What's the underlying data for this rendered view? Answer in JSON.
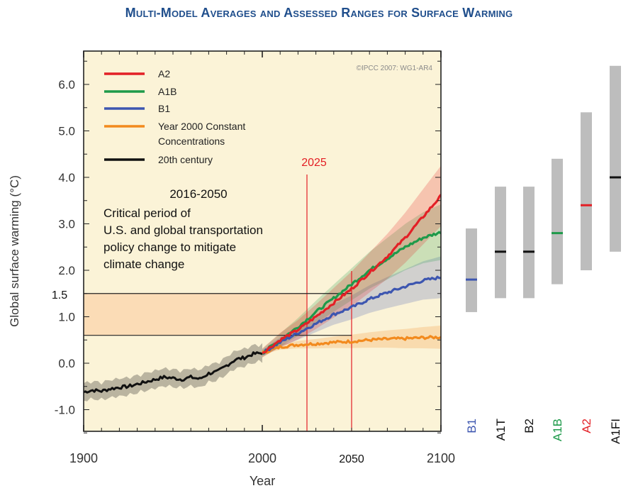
{
  "title": "Multi-Model Averages and Assessed Ranges for Surface Warming",
  "copyright": "©IPCC 2007: WG1-AR4",
  "annotations": {
    "marker_2025": "2025",
    "period_title": "2016-2050",
    "period_lines": [
      "Critical period of",
      "U.S. and global transportation",
      "policy change to mitigate",
      "climate change"
    ],
    "level_label": "1.5",
    "year_2050": "2050"
  },
  "colors": {
    "A2": "#e32026",
    "A1B": "#1e9a4a",
    "B1": "#3d56b0",
    "constant": "#f28a1e",
    "century": "#111111",
    "marker": "#e31e24",
    "plot_bg": "#fbf3d7",
    "band_bg": "#fbdcb6",
    "bar_gray": "#bdbdbd",
    "title": "#1f4e8c"
  },
  "chart_data": {
    "type": "line",
    "xlabel": "Year",
    "ylabel": "Global surface warming (°C)",
    "xlim": [
      1900,
      2100
    ],
    "ylim": [
      -1.5,
      6.5
    ],
    "xticks": [
      "1900",
      "2000",
      "2100"
    ],
    "yticks": [
      "-1.0",
      "0.0",
      "1.0",
      "2.0",
      "3.0",
      "4.0",
      "5.0",
      "6.0"
    ],
    "legend": [
      {
        "name": "A2",
        "color": "#e32026"
      },
      {
        "name": "A1B",
        "color": "#1e9a4a"
      },
      {
        "name": "B1",
        "color": "#3d56b0"
      },
      {
        "name": "Year 2000 Constant Concentrations",
        "lines": [
          "Year 2000 Constant",
          "Concentrations"
        ],
        "color": "#f28a1e"
      },
      {
        "name": "20th century",
        "color": "#111111"
      }
    ],
    "legend_position": "top-left",
    "series": [
      {
        "name": "20th century",
        "x": [
          1900,
          1905,
          1910,
          1915,
          1920,
          1925,
          1930,
          1935,
          1940,
          1945,
          1950,
          1955,
          1960,
          1965,
          1970,
          1975,
          1980,
          1985,
          1990,
          1995,
          2000
        ],
        "y": [
          -0.62,
          -0.58,
          -0.6,
          -0.55,
          -0.52,
          -0.5,
          -0.45,
          -0.4,
          -0.35,
          -0.3,
          -0.32,
          -0.35,
          -0.3,
          -0.34,
          -0.22,
          -0.18,
          -0.05,
          0.08,
          0.12,
          0.2,
          0.22
        ]
      },
      {
        "name": "A2",
        "x": [
          2000,
          2010,
          2020,
          2030,
          2040,
          2050,
          2060,
          2070,
          2080,
          2090,
          2100
        ],
        "y": [
          0.22,
          0.5,
          0.72,
          1.0,
          1.3,
          1.6,
          1.95,
          2.3,
          2.7,
          3.15,
          3.6
        ]
      },
      {
        "name": "A1B",
        "x": [
          2000,
          2010,
          2020,
          2030,
          2040,
          2050,
          2060,
          2070,
          2080,
          2090,
          2100
        ],
        "y": [
          0.22,
          0.5,
          0.78,
          1.1,
          1.4,
          1.7,
          2.0,
          2.25,
          2.5,
          2.7,
          2.82
        ]
      },
      {
        "name": "B1",
        "x": [
          2000,
          2010,
          2020,
          2030,
          2040,
          2050,
          2060,
          2070,
          2080,
          2090,
          2100
        ],
        "y": [
          0.22,
          0.45,
          0.65,
          0.85,
          1.05,
          1.2,
          1.38,
          1.52,
          1.65,
          1.78,
          1.85
        ]
      },
      {
        "name": "Year 2000 Constant Concentrations",
        "x": [
          2000,
          2010,
          2020,
          2030,
          2040,
          2050,
          2060,
          2070,
          2080,
          2090,
          2100
        ],
        "y": [
          0.22,
          0.35,
          0.4,
          0.42,
          0.45,
          0.47,
          0.5,
          0.52,
          0.53,
          0.55,
          0.56
        ]
      }
    ],
    "reference_lines": {
      "vertical_years": [
        2025,
        2050
      ],
      "horizontal_values": [
        0.6,
        1.5
      ]
    },
    "assessed_ranges": [
      {
        "scenario": "B1",
        "low": 1.1,
        "high": 2.9,
        "best": 1.8,
        "color": "#3d56b0"
      },
      {
        "scenario": "A1T",
        "low": 1.4,
        "high": 3.8,
        "best": 2.4,
        "color": "#111111"
      },
      {
        "scenario": "B2",
        "low": 1.4,
        "high": 3.8,
        "best": 2.4,
        "color": "#111111"
      },
      {
        "scenario": "A1B",
        "low": 1.7,
        "high": 4.4,
        "best": 2.8,
        "color": "#1e9a4a"
      },
      {
        "scenario": "A2",
        "low": 2.0,
        "high": 5.4,
        "best": 3.4,
        "color": "#e32026"
      },
      {
        "scenario": "A1FI",
        "low": 2.4,
        "high": 6.4,
        "best": 4.0,
        "color": "#111111"
      }
    ]
  }
}
